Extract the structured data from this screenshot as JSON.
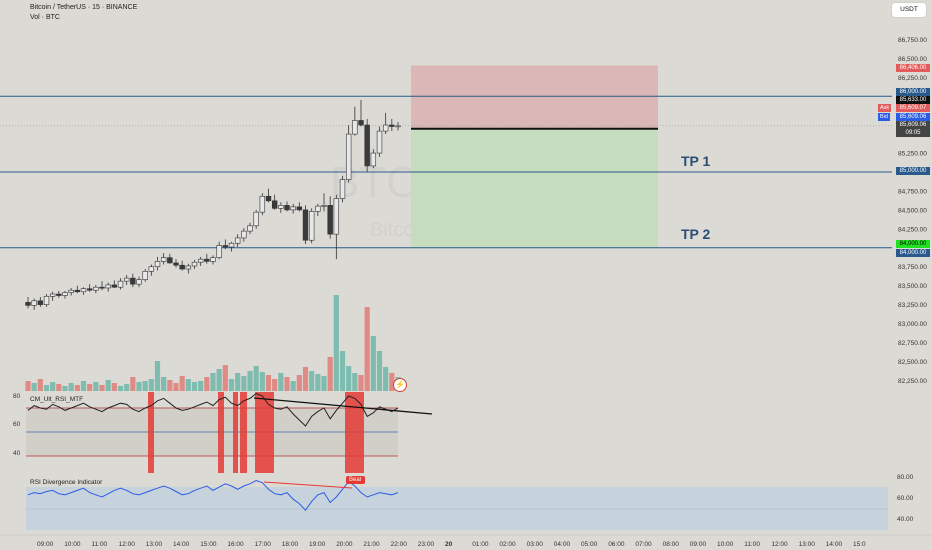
{
  "header": {
    "title": "Bitcoin / TetherUS · 15 · BINANCE",
    "volume_label": "Vol · BTC"
  },
  "currency_button": "USDT",
  "watermark": {
    "symbol": "BTCUSDT, 15",
    "name": "Bitcoin / TetherUS"
  },
  "price_axis": {
    "ticks": [
      "86,750.00",
      "86,500.00",
      "86,250.00",
      "85,750.00",
      "85,250.00",
      "84,750.00",
      "84,500.00",
      "84,250.00",
      "83,750.00",
      "83,500.00",
      "83,250.00",
      "83,000.00",
      "82,750.00",
      "82,500.00",
      "82,250.00"
    ]
  },
  "price_tags": {
    "stop": "86,406.00",
    "level_86000": "86,000.00",
    "last": "85,633.00",
    "ask_label": "Ask",
    "ask": "85,609.07",
    "bid_label": "Bid",
    "bid": "85,609.06",
    "current": "85,609.06",
    "countdown": "09:05",
    "level_85000": "85,000.00",
    "target": "84,000.00",
    "level_84000": "84,000.00"
  },
  "targets": {
    "tp1": "TP 1",
    "tp2": "TP 2"
  },
  "rsi_mtf": {
    "title": "CM_Ult_RSI_MTF",
    "axis": [
      "80",
      "60",
      "40"
    ]
  },
  "rsi_div": {
    "title": "RSI Divergence Indicator",
    "axis": [
      "80.00",
      "60.00",
      "40.00"
    ],
    "signal": "Bear"
  },
  "time_axis": {
    "labels": [
      "09:00",
      "10:00",
      "11:00",
      "12:00",
      "13:00",
      "14:00",
      "15:00",
      "16:00",
      "17:00",
      "18:00",
      "19:00",
      "20:00",
      "21:00",
      "22:00",
      "23:00",
      "20",
      "01:00",
      "02:00",
      "03:00",
      "04:00",
      "05:00",
      "06:00",
      "07:00",
      "08:00",
      "09:00",
      "10:00",
      "11:00",
      "12:00",
      "13:00",
      "14:00",
      "15:0"
    ]
  },
  "colors": {
    "up": "#e8e8e8",
    "down": "#3a3a3a",
    "hline": "#2a5a8c",
    "profit": "#c6dcbf",
    "loss": "#dcb7b7",
    "vol_up": "#7fbcb0",
    "vol_down": "#e08a86",
    "rsi_band": "#e53935",
    "div_line": "#2b5ce6"
  },
  "chart_data": {
    "type": "candlestick",
    "price_range": [
      82150,
      86900
    ],
    "levels": [
      86000,
      85000,
      84000
    ],
    "position": {
      "entry": 85570,
      "stop": 86406,
      "target": 84000
    },
    "candles": [
      [
        83280,
        83350,
        83200,
        83240
      ],
      [
        83240,
        83330,
        83180,
        83300
      ],
      [
        83300,
        83350,
        83220,
        83250
      ],
      [
        83250,
        83390,
        83220,
        83360
      ],
      [
        83360,
        83420,
        83300,
        83390
      ],
      [
        83390,
        83430,
        83340,
        83370
      ],
      [
        83370,
        83430,
        83330,
        83410
      ],
      [
        83410,
        83470,
        83370,
        83440
      ],
      [
        83440,
        83500,
        83400,
        83420
      ],
      [
        83420,
        83480,
        83380,
        83460
      ],
      [
        83460,
        83520,
        83420,
        83440
      ],
      [
        83440,
        83510,
        83400,
        83480
      ],
      [
        83480,
        83560,
        83440,
        83470
      ],
      [
        83470,
        83540,
        83420,
        83510
      ],
      [
        83510,
        83570,
        83470,
        83480
      ],
      [
        83480,
        83600,
        83450,
        83560
      ],
      [
        83560,
        83640,
        83510,
        83600
      ],
      [
        83600,
        83660,
        83480,
        83520
      ],
      [
        83520,
        83620,
        83480,
        83580
      ],
      [
        83580,
        83720,
        83550,
        83690
      ],
      [
        83690,
        83780,
        83630,
        83750
      ],
      [
        83750,
        83880,
        83700,
        83820
      ],
      [
        83820,
        83930,
        83780,
        83870
      ],
      [
        83870,
        83920,
        83790,
        83800
      ],
      [
        83800,
        83850,
        83740,
        83770
      ],
      [
        83770,
        83830,
        83700,
        83720
      ],
      [
        83720,
        83790,
        83660,
        83760
      ],
      [
        83760,
        83840,
        83720,
        83810
      ],
      [
        83810,
        83880,
        83760,
        83850
      ],
      [
        83850,
        83920,
        83790,
        83820
      ],
      [
        83820,
        83900,
        83780,
        83870
      ],
      [
        83870,
        84080,
        83850,
        84030
      ],
      [
        84030,
        84110,
        83980,
        84010
      ],
      [
        84010,
        84080,
        83950,
        84060
      ],
      [
        84060,
        84180,
        84010,
        84130
      ],
      [
        84130,
        84260,
        84080,
        84220
      ],
      [
        84220,
        84330,
        84180,
        84290
      ],
      [
        84290,
        84500,
        84250,
        84470
      ],
      [
        84470,
        84720,
        84430,
        84680
      ],
      [
        84680,
        84780,
        84600,
        84620
      ],
      [
        84620,
        84700,
        84500,
        84520
      ],
      [
        84520,
        84600,
        84460,
        84560
      ],
      [
        84560,
        84610,
        84480,
        84500
      ],
      [
        84500,
        84580,
        84450,
        84540
      ],
      [
        84540,
        84600,
        84480,
        84500
      ],
      [
        84500,
        84560,
        84050,
        84100
      ],
      [
        84100,
        84520,
        84060,
        84480
      ],
      [
        84480,
        84580,
        84420,
        84550
      ],
      [
        84550,
        84720,
        84480,
        84560
      ],
      [
        84560,
        84680,
        84120,
        84180
      ],
      [
        84180,
        84700,
        83850,
        84650
      ],
      [
        84650,
        84950,
        84600,
        84900
      ],
      [
        84900,
        85620,
        84860,
        85500
      ],
      [
        85500,
        85860,
        85480,
        85680
      ],
      [
        85680,
        85950,
        85600,
        85620
      ],
      [
        85620,
        85700,
        85000,
        85080
      ],
      [
        85080,
        85300,
        85050,
        85250
      ],
      [
        85250,
        85600,
        85200,
        85540
      ],
      [
        85540,
        85780,
        85500,
        85620
      ],
      [
        85620,
        85700,
        85540,
        85600
      ],
      [
        85600,
        85660,
        85550,
        85609
      ]
    ],
    "volume": [
      1,
      1,
      1,
      1,
      1,
      1,
      1,
      1,
      1,
      1,
      1,
      1,
      1,
      1,
      1,
      1,
      1,
      1,
      1,
      1,
      1,
      1,
      1,
      1,
      1,
      1,
      1,
      1,
      1,
      1,
      1,
      1,
      1,
      1,
      1,
      1,
      1,
      1,
      1,
      1,
      1,
      1,
      1,
      1,
      1,
      1,
      1,
      1,
      1,
      1,
      1,
      1,
      1,
      1,
      1,
      1,
      1,
      1,
      1,
      1,
      1
    ],
    "rsi": [
      68,
      72,
      70,
      69,
      73,
      71,
      68,
      70,
      72,
      74,
      71,
      69,
      67,
      70,
      72,
      74,
      73,
      69,
      67,
      70,
      72,
      76,
      78,
      74,
      70,
      68,
      69,
      71,
      73,
      75,
      72,
      77,
      79,
      74,
      72,
      76,
      78,
      82,
      80,
      73,
      70,
      69,
      71,
      65,
      60,
      55,
      63,
      67,
      70,
      61,
      68,
      74,
      80,
      78,
      73,
      63,
      66,
      71,
      69,
      67,
      70
    ],
    "divergence_rsi": [
      62,
      64,
      63,
      65,
      66,
      63,
      62,
      64,
      66,
      68,
      64,
      62,
      60,
      63,
      66,
      68,
      66,
      63,
      62,
      64,
      66,
      68,
      70,
      68,
      65,
      62,
      63,
      66,
      68,
      70,
      66,
      69,
      72,
      70,
      67,
      70,
      72,
      75,
      73,
      67,
      63,
      62,
      64,
      58,
      54,
      48,
      56,
      62,
      64,
      55,
      60,
      67,
      74,
      70,
      64,
      60,
      62,
      64,
      63,
      62,
      64
    ]
  }
}
